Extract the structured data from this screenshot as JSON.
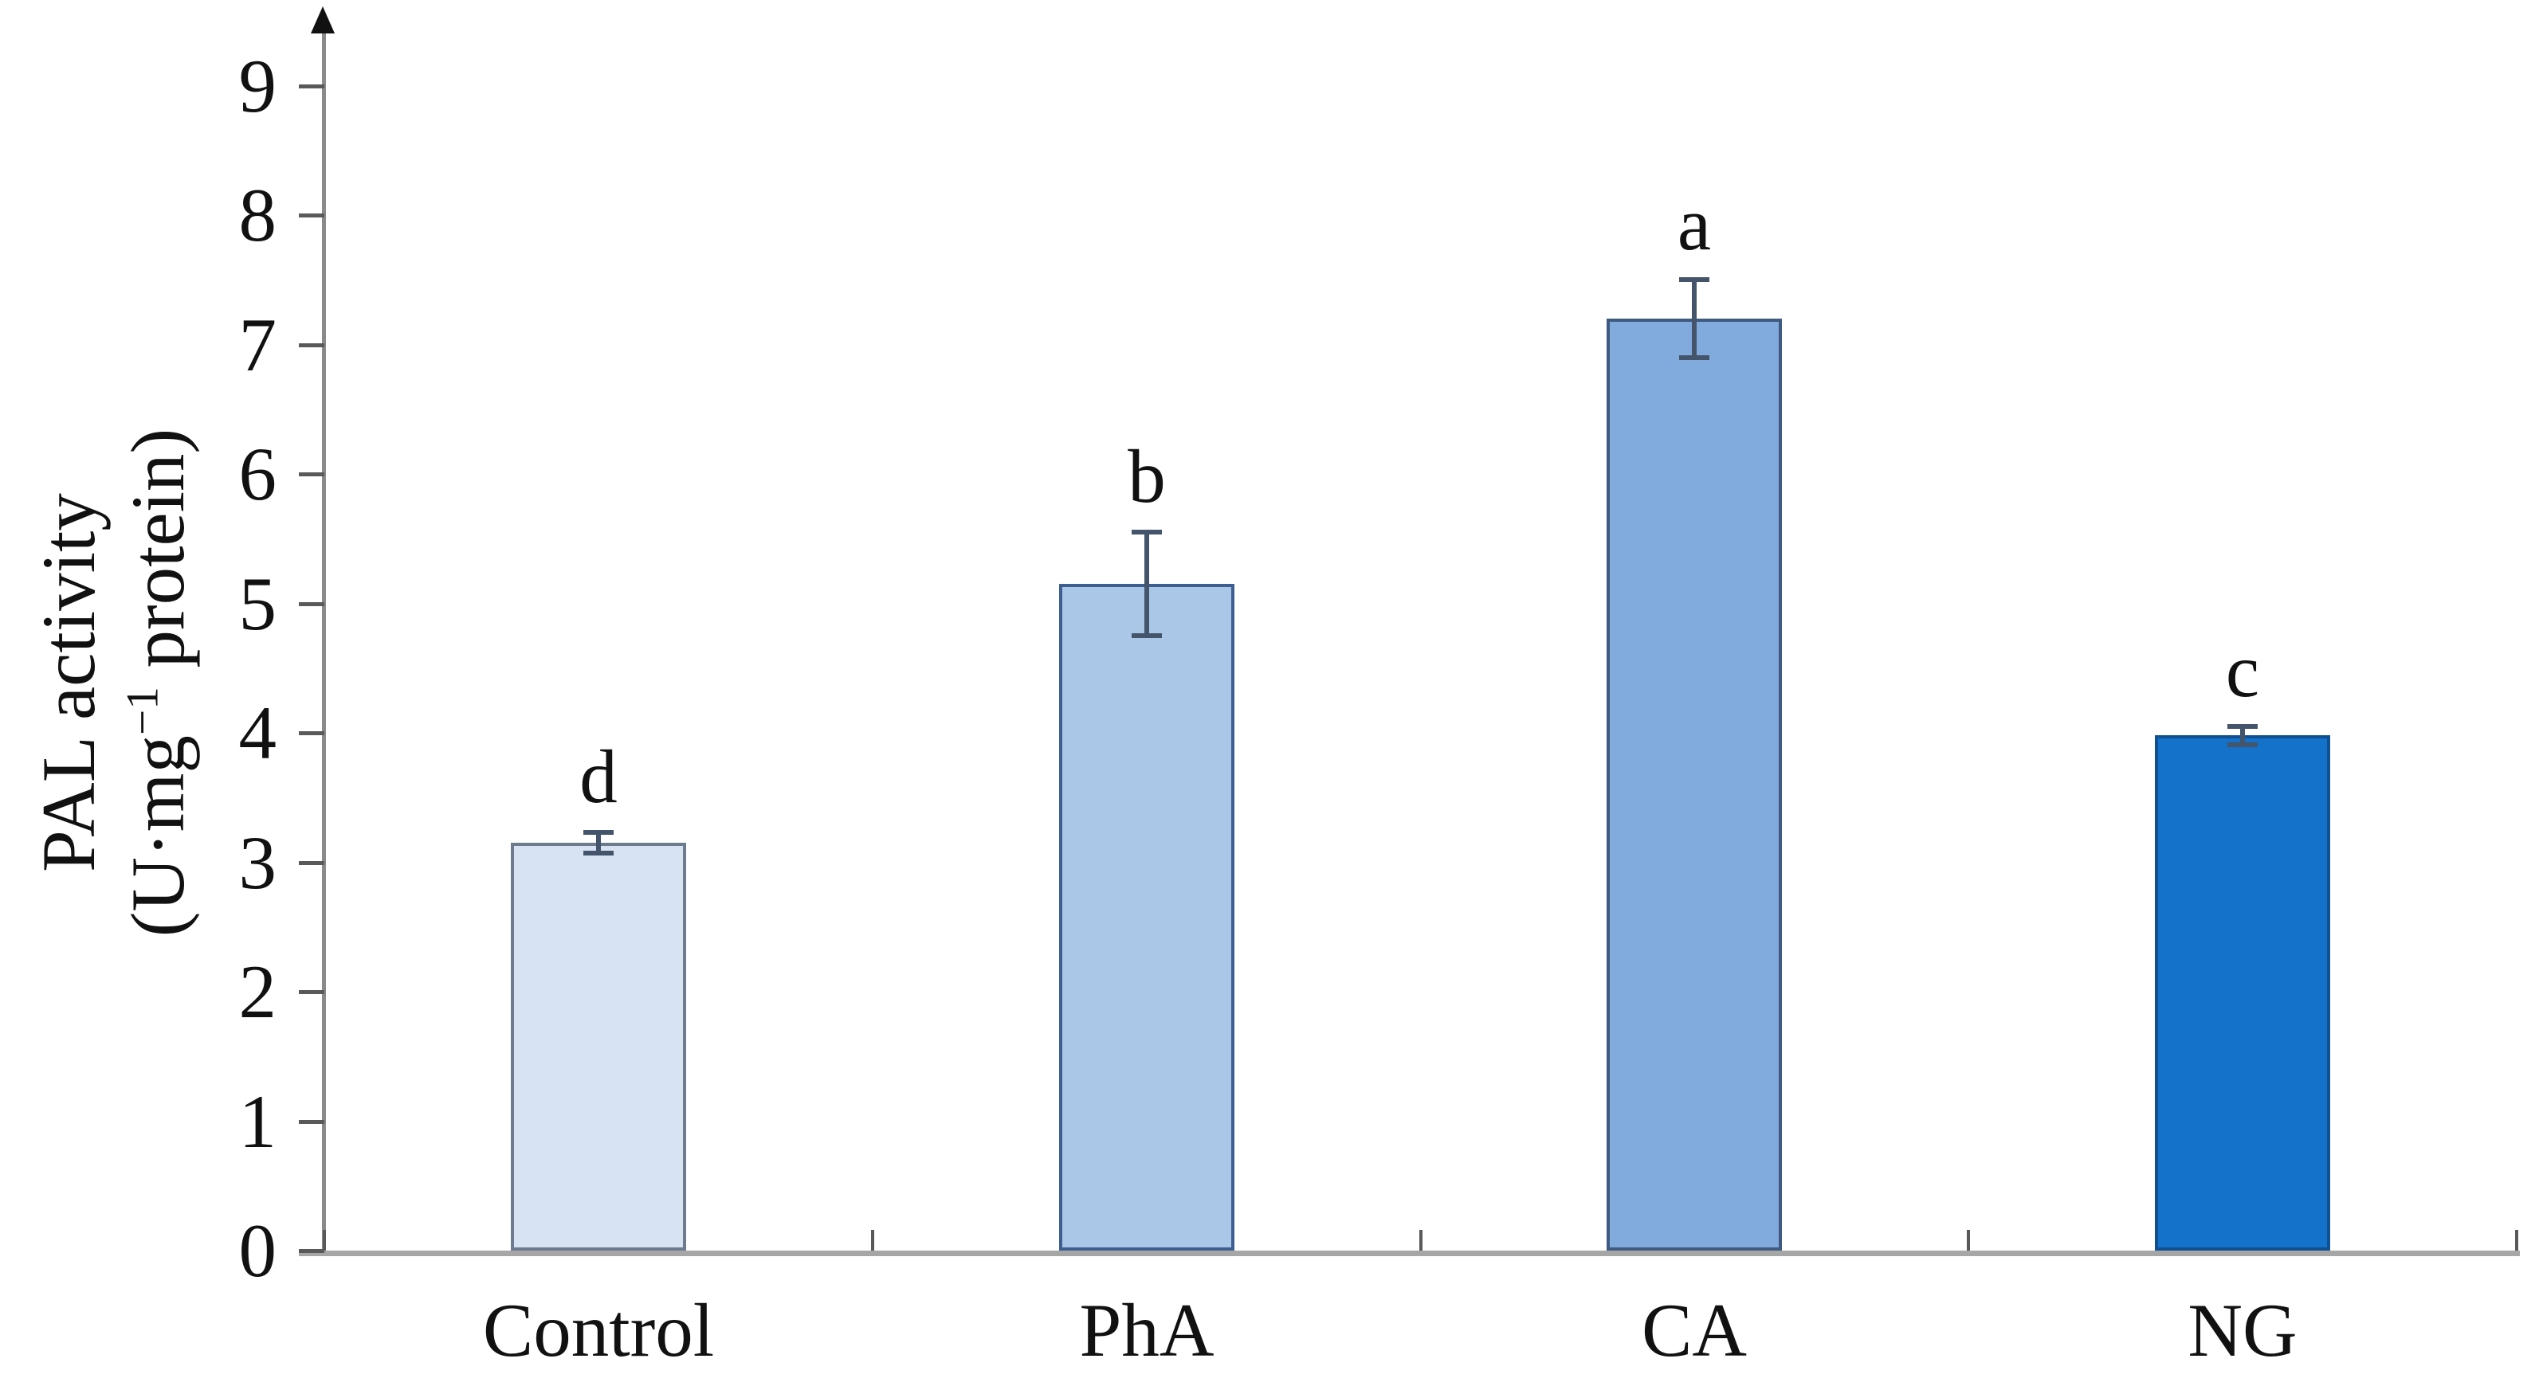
{
  "figure": {
    "background": "#ffffff"
  },
  "chart_data": {
    "type": "bar",
    "title": "",
    "categories": [
      "Control",
      "PhA",
      "CA",
      "NG"
    ],
    "values": [
      3.15,
      5.15,
      7.2,
      3.98
    ],
    "errors": [
      0.08,
      0.4,
      0.3,
      0.07
    ],
    "sig_letters": [
      "d",
      "b",
      "a",
      "c"
    ],
    "bar_fills": [
      "#d7e3f3",
      "#abc7e8",
      "#81aadd",
      "#1572cb"
    ],
    "bar_borders": [
      "#6d7b8f",
      "#3d5e91",
      "#3f5a80",
      "#0f5190"
    ],
    "xlabel": "",
    "ylabel_line1": "PAL activity",
    "ylabel_line2_pre": "(U·mg",
    "ylabel_line2_sup": "−1",
    "ylabel_line2_post": " protein)",
    "ylim": [
      0,
      9
    ],
    "yticks": [
      0,
      1,
      2,
      3,
      4,
      5,
      6,
      7,
      8,
      9
    ],
    "grid": false,
    "legend": "none",
    "error_color": "#44546a",
    "axis_color": "#8a8a8a",
    "baseline_color": "#a6a6a6",
    "tick_color": "#595959",
    "text_color": "#111111",
    "arrow_color": "#111111"
  }
}
